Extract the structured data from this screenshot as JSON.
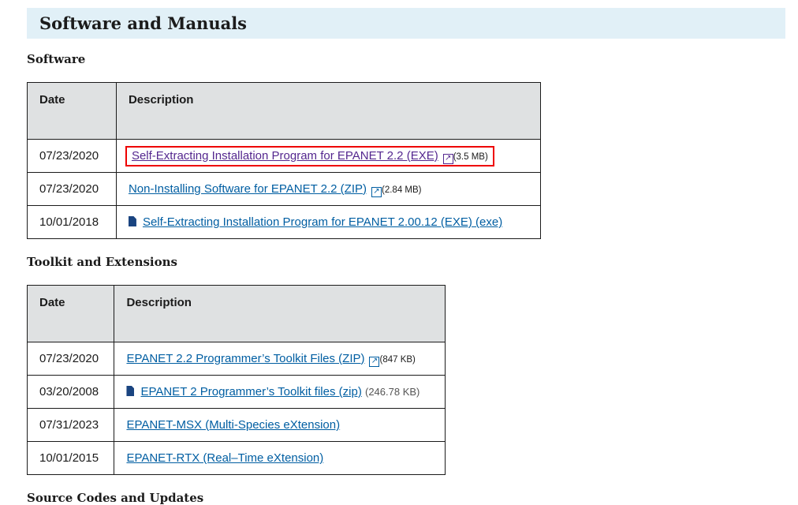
{
  "page_title": "Software and Manuals",
  "sections": [
    {
      "title": "Software",
      "headers": [
        "Date",
        "Description"
      ],
      "rows": [
        {
          "date": "07/23/2020",
          "link": "Self-Extracting Installation Program for EPANET 2.2 (EXE)",
          "size": "(3.5 MB)",
          "icon": "external-link-icon"
        },
        {
          "date": "07/23/2020",
          "link": "Non-Installing Software for EPANET 2.2 (ZIP)",
          "size": "(2.84 MB)",
          "icon": "external-link-icon"
        },
        {
          "date": "10/01/2018",
          "link": "Self-Extracting Installation Program for EPANET 2.00.12 (EXE) (exe)",
          "icon": "file-icon"
        }
      ]
    },
    {
      "title": "Toolkit and Extensions",
      "headers": [
        "Date",
        "Description"
      ],
      "rows": [
        {
          "date": "07/23/2020",
          "link": "EPANET 2.2 Programmer’s Toolkit Files (ZIP)",
          "size": "(847 KB)",
          "icon": "external-link-icon"
        },
        {
          "date": "03/20/2008",
          "link": "EPANET 2 Programmer’s Toolkit files (zip)",
          "size": "(246.78 KB)",
          "icon": "file-icon"
        },
        {
          "date": "07/31/2023",
          "link": "EPANET-MSX (Multi-Species eXtension)"
        },
        {
          "date": "10/01/2015",
          "link": "EPANET-RTX (Real–Time eXtension)"
        }
      ]
    },
    {
      "title": "Source Codes and Updates"
    }
  ],
  "colors": {
    "link": "#005ea2",
    "visited": "#54278f",
    "highlight": "#ee0000",
    "heading_bg": "#e1f0f7"
  }
}
